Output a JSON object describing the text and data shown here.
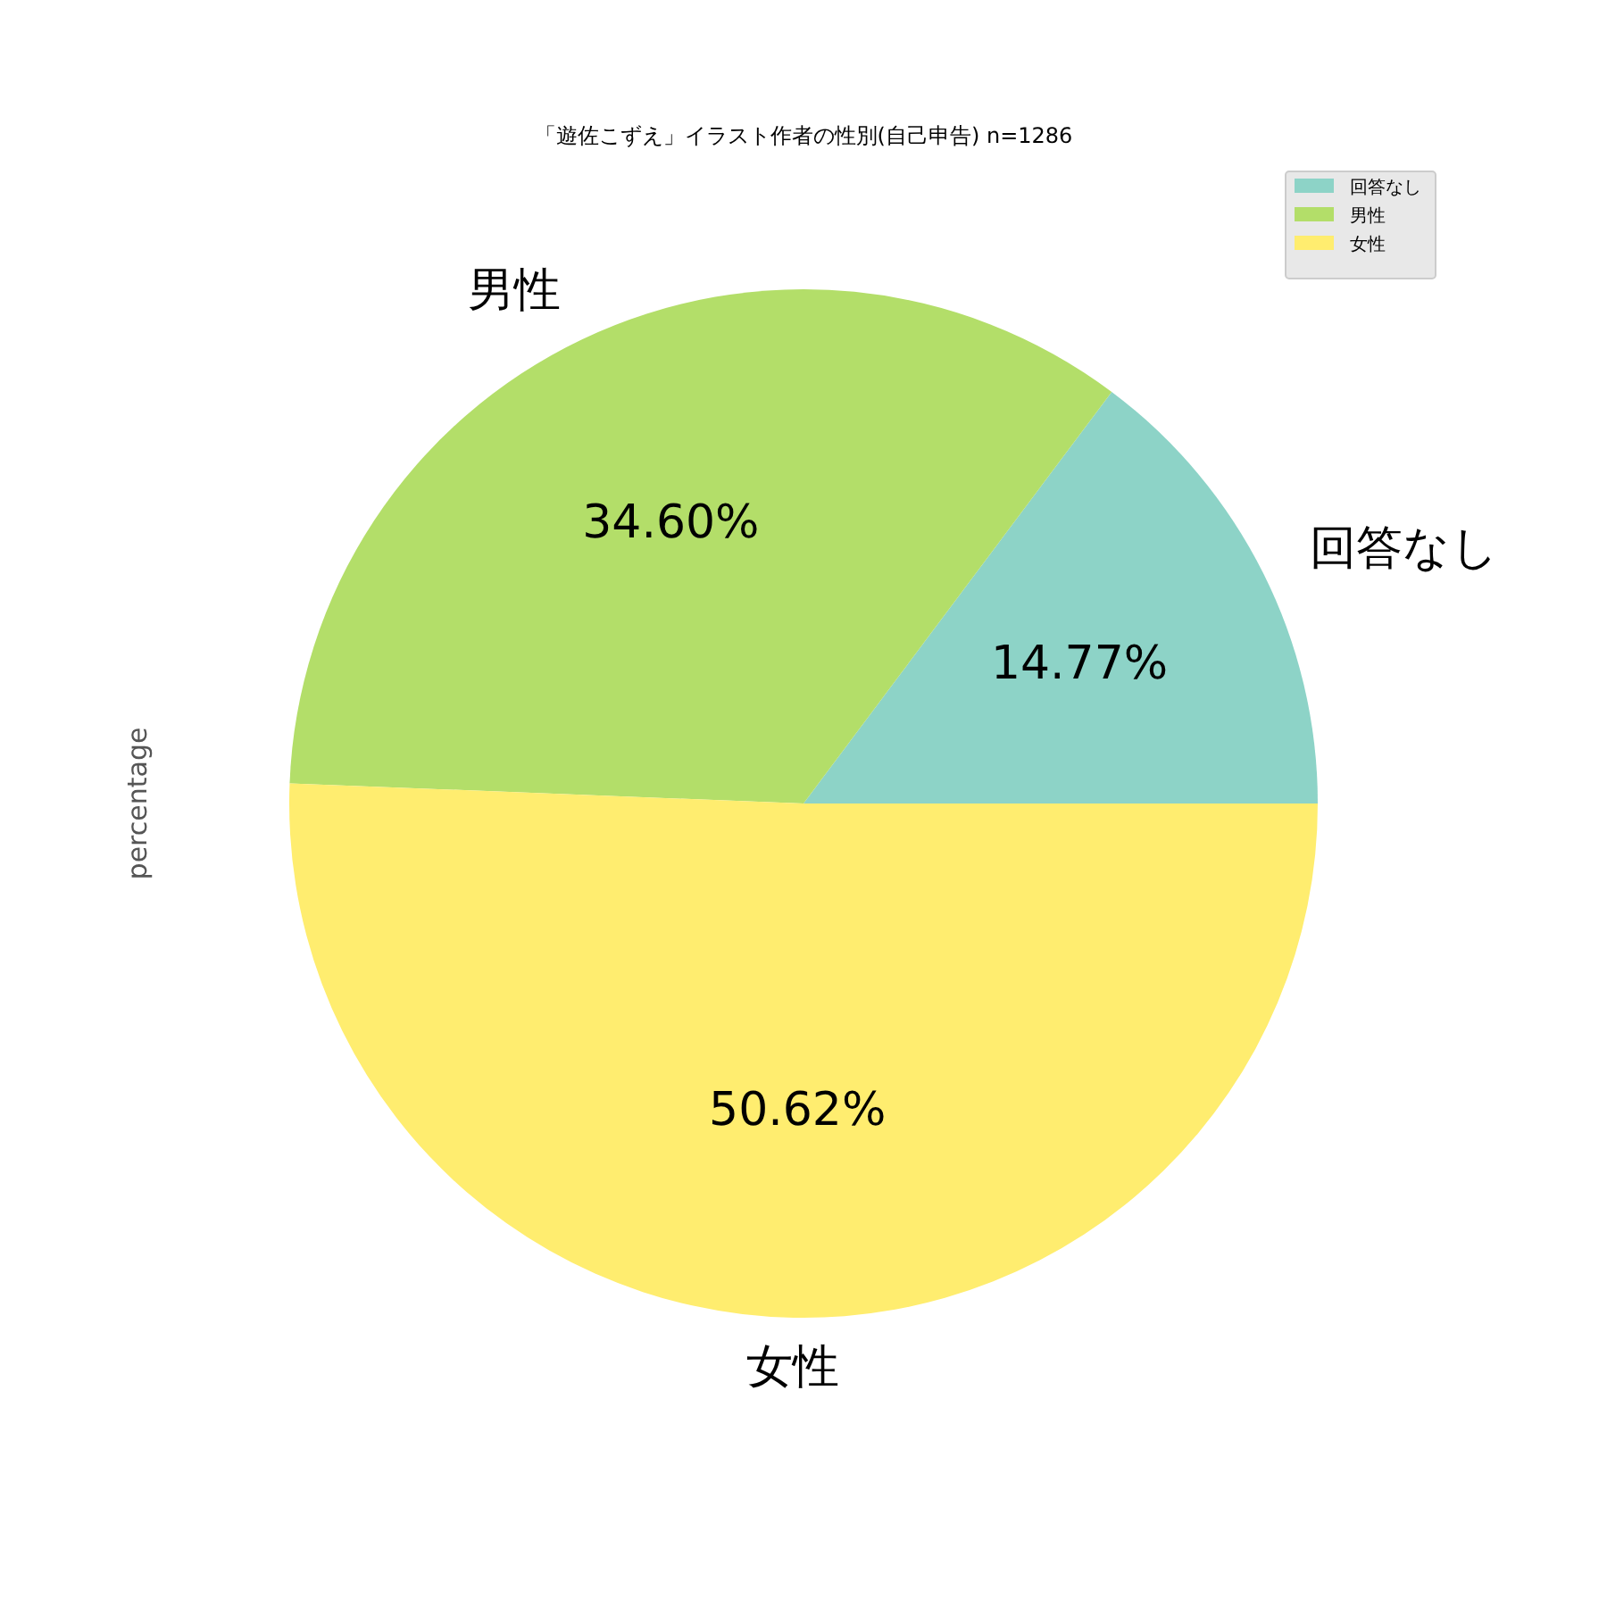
{
  "chart_data": {
    "type": "pie",
    "title": "「遊佐こずえ」イラスト作者の性別(自己申告) n=1286",
    "ylabel": "percentage",
    "categories": [
      "回答なし",
      "男性",
      "女性"
    ],
    "values": [
      14.77,
      34.6,
      50.62
    ],
    "value_labels": [
      "14.77%",
      "34.60%",
      "50.62%"
    ],
    "colors": [
      "#8dd3c7",
      "#b3de69",
      "#ffed6f"
    ],
    "legend": "top right"
  }
}
